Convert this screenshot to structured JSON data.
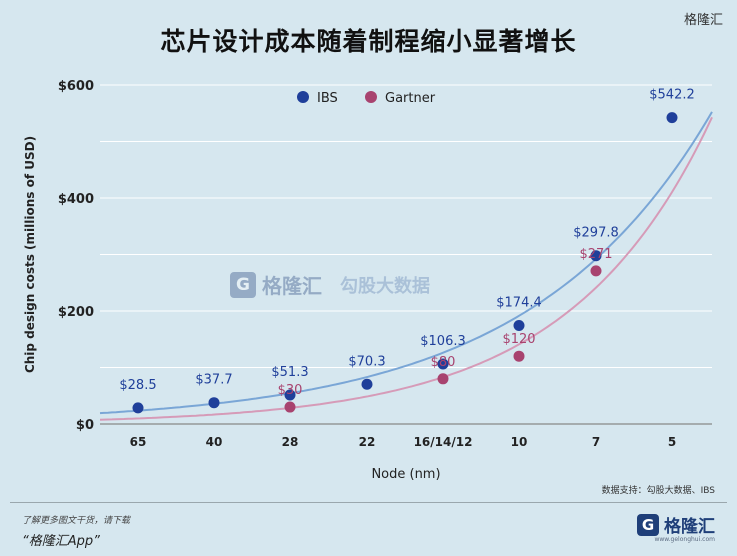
{
  "top_brand": "格隆汇",
  "title": "芯片设计成本随着制程缩小显著增长",
  "source": "数据支持：勾股大数据、IBS",
  "footer": {
    "note": "了解更多图文干货，请下载",
    "app": "“格隆汇App”",
    "logo_glyph": "G",
    "logo_text": "格隆汇",
    "logo_sub": "www.gelonghui.com"
  },
  "watermark": {
    "brand": "格隆汇",
    "brand2": "勾股大数据"
  },
  "colors": {
    "ibs": "#1f3f9a",
    "gartner": "#a8436f",
    "ibs_curve": "#7aa6d6",
    "gartner_curve": "#d69bb8"
  },
  "chart_data": {
    "type": "scatter",
    "xlabel": "Node (nm)",
    "ylabel": "Chip design costs (millions of USD)",
    "categories": [
      "65",
      "40",
      "28",
      "22",
      "16/14/12",
      "10",
      "7",
      "5"
    ],
    "ylim": [
      0,
      600
    ],
    "yticks": [
      0,
      200,
      400,
      600
    ],
    "ytick_labels": [
      "$0",
      "$200",
      "$400",
      "$600"
    ],
    "legend_position": "top",
    "grid": true,
    "series": [
      {
        "name": "IBS",
        "values": [
          28.5,
          37.7,
          51.3,
          70.3,
          106.3,
          174.4,
          297.8,
          542.2
        ],
        "labels": [
          "$28.5",
          "$37.7",
          "$51.3",
          "$70.3",
          "$106.3",
          "$174.4",
          "$297.8",
          "$542.2"
        ]
      },
      {
        "name": "Gartner",
        "values": [
          null,
          null,
          30,
          null,
          80,
          120,
          271,
          null
        ],
        "labels": [
          "",
          "",
          "$30",
          "",
          "$80",
          "$120",
          "$271",
          ""
        ]
      }
    ]
  }
}
